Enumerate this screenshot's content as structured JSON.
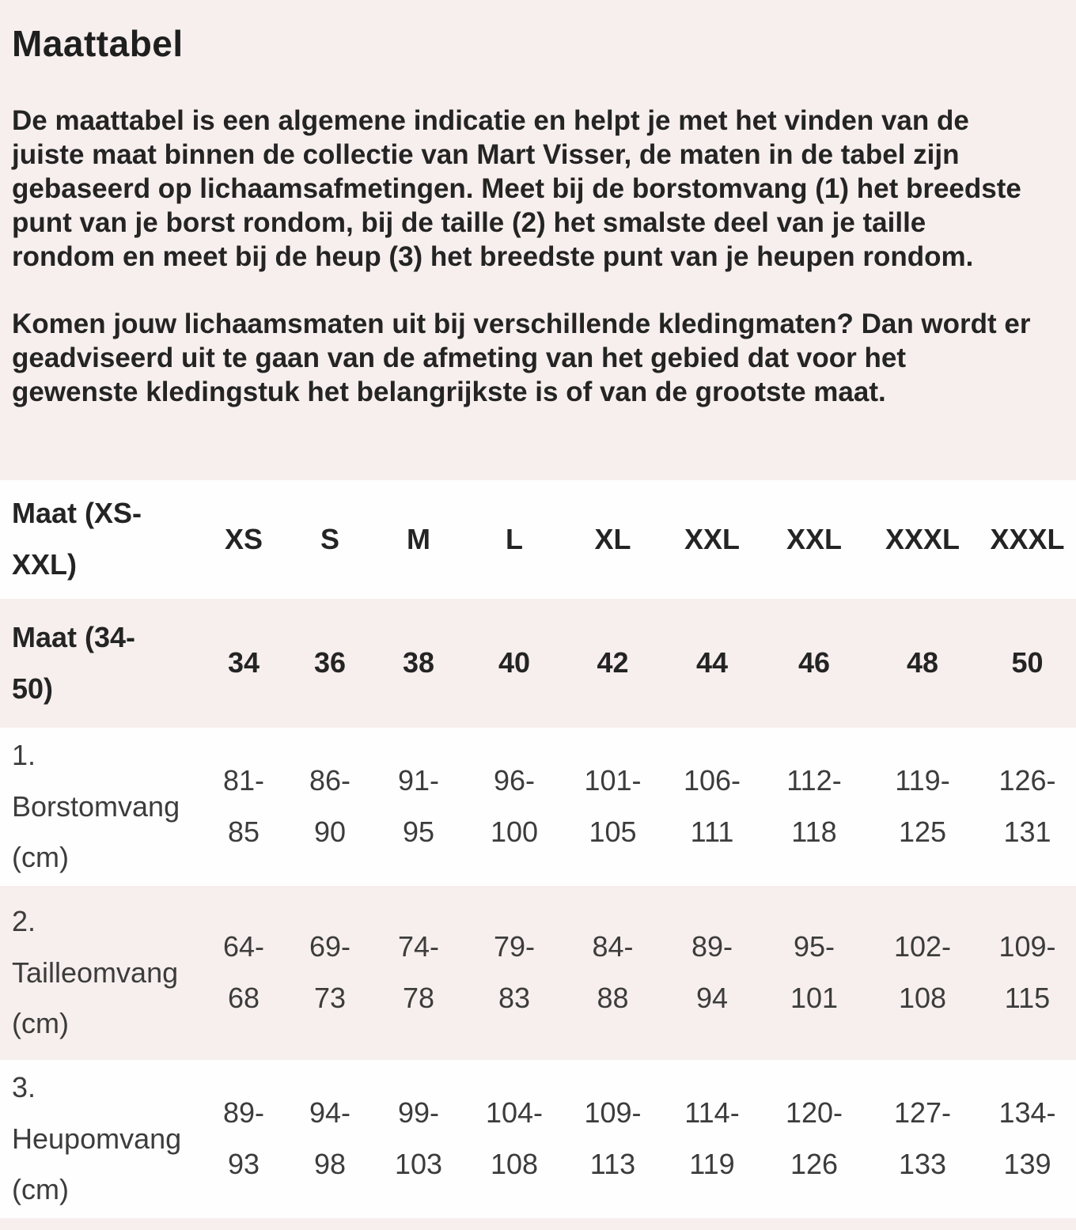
{
  "colors": {
    "background_pink": "#f7efed",
    "row_white": "#fefefe",
    "text_dark": "#242424",
    "text_soft": "#3c3c3c"
  },
  "intro": {
    "title": "Maattabel",
    "paragraphs": [
      "De maattabel is een algemene indicatie en helpt je met het vinden van de\njuiste maat binnen de collectie van Mart Visser, de maten in de tabel zijn\ngebaseerd op lichaamsafmetingen. Meet bij de borstomvang (1) het breedste\npunt van je borst rondom, bij de taille (2) het smalste deel van je taille\nrondom en meet bij de heup (3) het breedste punt van je heupen rondom.",
      "Komen jouw lichaamsmaten uit bij verschillende kledingmaten? Dan wordt er\ngeadviseerd uit te gaan van de afmeting van het gebied dat voor het\ngewenste kledingstuk het belangrijkste is of van de grootste maat."
    ]
  },
  "size_table": {
    "rows": [
      {
        "style": "header",
        "label": "Maat (XS-\nXXL)",
        "values": [
          "XS",
          "S",
          "M",
          "L",
          "XL",
          "XXL",
          "XXL",
          "XXXL",
          "XXXL"
        ]
      },
      {
        "style": "header",
        "label": "Maat (34-\n50)",
        "values": [
          "34",
          "36",
          "38",
          "40",
          "42",
          "44",
          "46",
          "48",
          "50"
        ]
      },
      {
        "style": "data",
        "label": "1.\nBorstomvang\n(cm)",
        "values": [
          "81-\n85",
          "86-\n90",
          "91-\n95",
          "96-\n100",
          "101-\n105",
          "106-\n111",
          "112-\n118",
          "119-\n125",
          "126-\n131"
        ]
      },
      {
        "style": "data",
        "label": "2.\nTailleomvang\n(cm)",
        "values": [
          "64-\n68",
          "69-\n73",
          "74-\n78",
          "79-\n83",
          "84-\n88",
          "89-\n94",
          "95-\n101",
          "102-\n108",
          "109-\n115"
        ]
      },
      {
        "style": "data",
        "label": "3.\nHeupomvang\n(cm)",
        "values": [
          "89-\n93",
          "94-\n98",
          "99-\n103",
          "104-\n108",
          "109-\n113",
          "114-\n119",
          "120-\n126",
          "127-\n133",
          "134-\n139"
        ]
      }
    ]
  }
}
